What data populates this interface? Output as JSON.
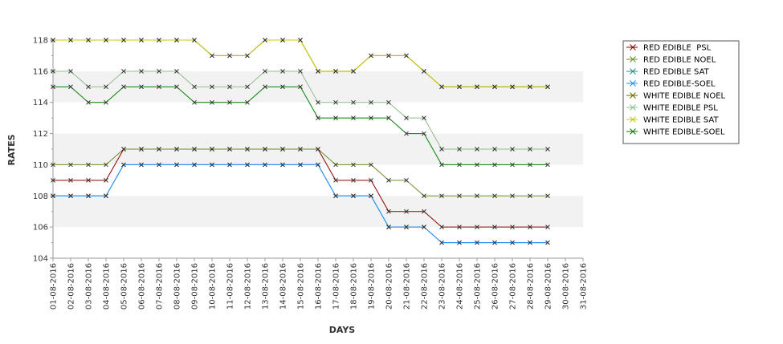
{
  "chart_data": {
    "type": "line",
    "xlabel": "DAYS",
    "ylabel": "RATES",
    "ylim": [
      104,
      118
    ],
    "yticks": [
      104,
      106,
      108,
      110,
      112,
      114,
      116,
      118
    ],
    "grid": "alternating horizontal bands",
    "legend_position": "right",
    "categories": [
      "01-08-2016",
      "02-08-2016",
      "03-08-2016",
      "04-08-2016",
      "05-08-2016",
      "06-08-2016",
      "07-08-2016",
      "08-08-2016",
      "09-08-2016",
      "10-08-2016",
      "11-08-2016",
      "12-08-2016",
      "13-08-2016",
      "14-08-2016",
      "15-08-2016",
      "16-08-2016",
      "17-08-2016",
      "18-08-2016",
      "19-08-2016",
      "20-08-2016",
      "21-08-2016",
      "22-08-2016",
      "23-08-2016",
      "24-08-2016",
      "25-08-2016",
      "26-08-2016",
      "27-08-2016",
      "28-08-2016",
      "29-08-2016",
      "30-08-2016",
      "31-08-2016"
    ],
    "series": [
      {
        "name": "RED EDIBLE  PSL",
        "color": "#8b0000",
        "values": [
          109,
          109,
          109,
          109,
          111,
          111,
          111,
          111,
          111,
          111,
          111,
          111,
          111,
          111,
          111,
          111,
          109,
          109,
          109,
          107,
          107,
          107,
          106,
          106,
          106,
          106,
          106,
          106,
          106,
          null,
          null
        ]
      },
      {
        "name": "RED EDIBLE NOEL",
        "color": "#6b8e23",
        "values": [
          110,
          110,
          110,
          110,
          111,
          111,
          111,
          111,
          111,
          111,
          111,
          111,
          111,
          111,
          111,
          111,
          110,
          110,
          110,
          109,
          109,
          108,
          108,
          108,
          108,
          108,
          108,
          108,
          108,
          null,
          null
        ]
      },
      {
        "name": "RED EDIBLE SAT",
        "color": "#2e8b8b",
        "values": [
          108,
          108,
          108,
          108,
          110,
          110,
          110,
          110,
          110,
          110,
          110,
          110,
          110,
          110,
          110,
          110,
          108,
          108,
          108,
          106,
          106,
          106,
          105,
          105,
          105,
          105,
          105,
          105,
          105,
          null,
          null
        ]
      },
      {
        "name": "RED EDIBLE-SOEL",
        "color": "#1e90ff",
        "values": [
          108,
          108,
          108,
          108,
          110,
          110,
          110,
          110,
          110,
          110,
          110,
          110,
          110,
          110,
          110,
          110,
          108,
          108,
          108,
          106,
          106,
          106,
          105,
          105,
          105,
          105,
          105,
          105,
          105,
          null,
          null
        ]
      },
      {
        "name": "WHITE EDIBLE NOEL",
        "color": "#6b6b00",
        "values": [
          118,
          118,
          118,
          118,
          118,
          118,
          118,
          118,
          118,
          117,
          117,
          117,
          118,
          118,
          118,
          116,
          116,
          116,
          117,
          117,
          117,
          116,
          115,
          115,
          115,
          115,
          115,
          115,
          115,
          null,
          null
        ]
      },
      {
        "name": "WHITE EDIBLE PSL",
        "color": "#8fbc8f",
        "values": [
          116,
          116,
          115,
          115,
          116,
          116,
          116,
          116,
          115,
          115,
          115,
          115,
          116,
          116,
          116,
          114,
          114,
          114,
          114,
          114,
          113,
          113,
          111,
          111,
          111,
          111,
          111,
          111,
          111,
          null,
          null
        ]
      },
      {
        "name": "WHITE EDIBLE SAT",
        "color": "#c8c800",
        "values": [
          118,
          118,
          118,
          118,
          118,
          118,
          118,
          118,
          118,
          117,
          117,
          117,
          118,
          118,
          118,
          116,
          116,
          116,
          117,
          117,
          117,
          116,
          115,
          115,
          115,
          115,
          115,
          115,
          115,
          null,
          null
        ]
      },
      {
        "name": "WHITE EDIBLE-SOEL",
        "color": "#008000",
        "values": [
          115,
          115,
          114,
          114,
          115,
          115,
          115,
          115,
          114,
          114,
          114,
          114,
          115,
          115,
          115,
          113,
          113,
          113,
          113,
          113,
          112,
          112,
          110,
          110,
          110,
          110,
          110,
          110,
          110,
          null,
          null
        ]
      }
    ]
  }
}
